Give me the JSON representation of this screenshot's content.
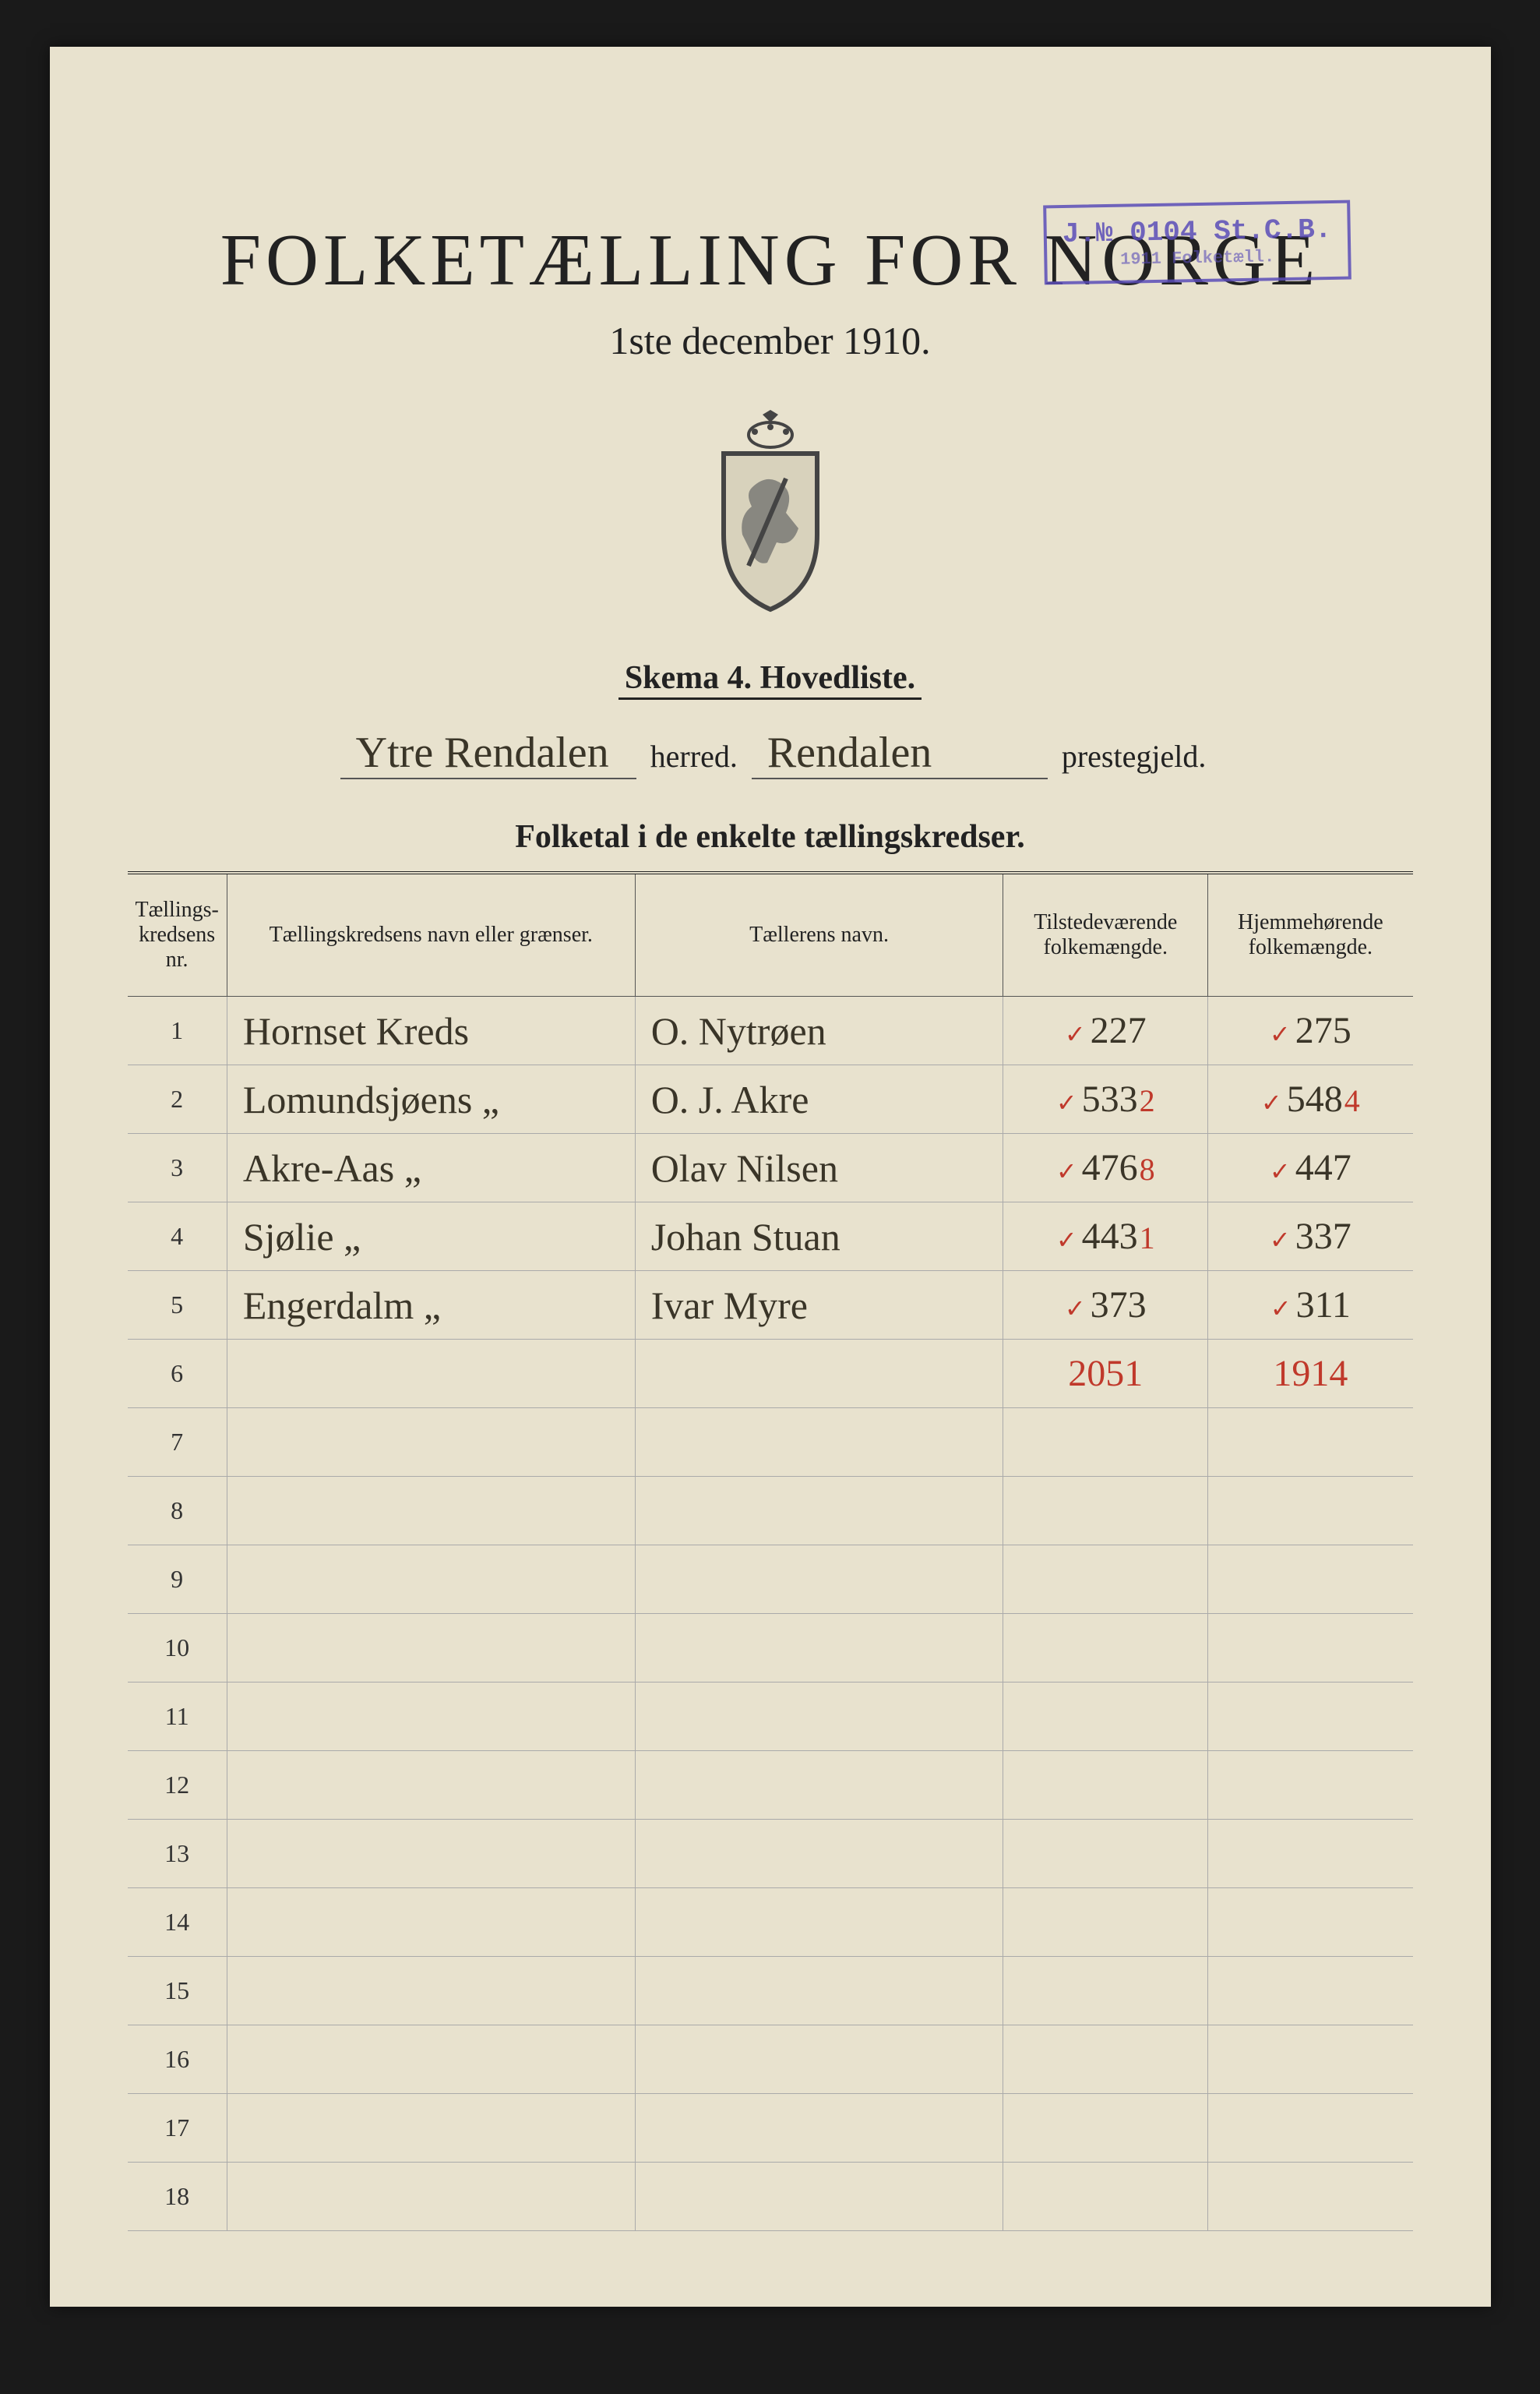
{
  "stamp": {
    "line1": "J.№ 0104 St.C.B.",
    "line2": "1911 Folketæll."
  },
  "header": {
    "title": "FOLKETÆLLING FOR NORGE",
    "subtitle": "1ste december 1910.",
    "skema": "Skema 4.   Hovedliste."
  },
  "herred": {
    "herred_value": "Ytre Rendalen",
    "herred_label": "herred.",
    "prestegjeld_value": "Rendalen",
    "prestegjeld_label": "prestegjeld."
  },
  "table_title": "Folketal i de enkelte tællingskredser.",
  "columns": {
    "nr": "Tællings-\nkredsens nr.",
    "name": "Tællingskredsens navn eller grænser.",
    "counter": "Tællerens navn.",
    "present": "Tilstedeværende folkemængde.",
    "home": "Hjemmehørende folkemængde."
  },
  "rows": [
    {
      "nr": "1",
      "name": "Hornset Kreds",
      "counter": "O. Nytrøen",
      "present_tick": "✓",
      "present": "227",
      "present_red": "",
      "home_tick": "✓",
      "home": "275",
      "home_red": ""
    },
    {
      "nr": "2",
      "name": "Lomundsjøens „",
      "counter": "O. J. Akre",
      "present_tick": "✓",
      "present": "533",
      "present_red": "2",
      "home_tick": "✓",
      "home": "548",
      "home_red": "4"
    },
    {
      "nr": "3",
      "name": "Akre-Aas „",
      "counter": "Olav Nilsen",
      "present_tick": "✓",
      "present": "476",
      "present_red": "8",
      "home_tick": "✓",
      "home": "447",
      "home_red": ""
    },
    {
      "nr": "4",
      "name": "Sjølie „",
      "counter": "Johan Stuan",
      "present_tick": "✓",
      "present": "443",
      "present_red": "1",
      "home_tick": "✓",
      "home": "337",
      "home_red": ""
    },
    {
      "nr": "5",
      "name": "Engerdalm „",
      "counter": "Ivar Myre",
      "present_tick": "✓",
      "present": "373",
      "present_red": "",
      "home_tick": "✓",
      "home": "311",
      "home_red": ""
    }
  ],
  "totals": {
    "present": "2051",
    "home": "1914"
  },
  "empty_rows_start": 7,
  "empty_rows_end": 18,
  "colors": {
    "paper": "#e8e2ce",
    "ink": "#222",
    "handwriting": "#3a3528",
    "red_ink": "#c0392b",
    "stamp": "#5b4db8",
    "background": "#1a1a1a"
  }
}
